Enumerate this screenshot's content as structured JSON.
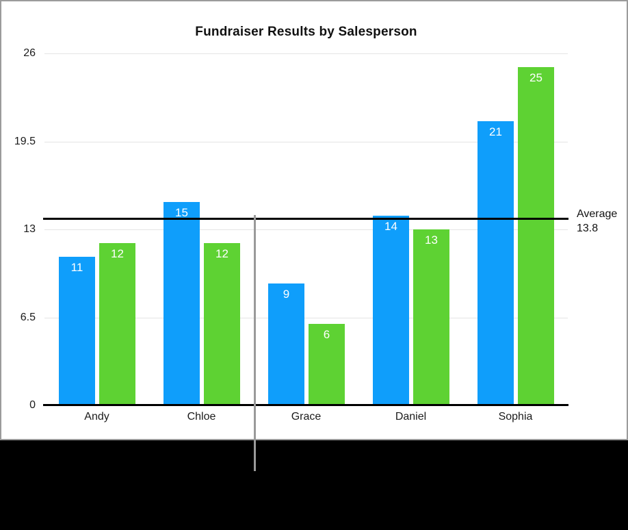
{
  "chart_data": {
    "type": "bar",
    "title": "Fundraiser Results by Salesperson",
    "categories": [
      "Andy",
      "Chloe",
      "Grace",
      "Daniel",
      "Sophia"
    ],
    "series": [
      {
        "name": "blue",
        "color": "#0f9efb",
        "values": [
          11,
          15,
          9,
          14,
          21
        ]
      },
      {
        "name": "green",
        "color": "#5ed233",
        "values": [
          12,
          12,
          6,
          13,
          25
        ]
      }
    ],
    "bar_value_labels": [
      [
        "11",
        "15",
        "9",
        "14",
        "21"
      ],
      [
        "12",
        "12",
        "6",
        "13",
        "25"
      ]
    ],
    "y_ticks": [
      "0",
      "6.5",
      "13",
      "19.5",
      "26"
    ],
    "y_tick_values": [
      0,
      6.5,
      13,
      19.5,
      26
    ],
    "ylim": [
      0,
      26
    ],
    "grid": true,
    "legend": "none",
    "xlabel": "",
    "ylabel": "",
    "average_line": {
      "label": "Average",
      "value": 13.8,
      "value_label": "13.8",
      "color": "#000000"
    }
  },
  "colors": {
    "series_blue": "#0f9efb",
    "series_green": "#5ed233",
    "gridline": "#e4e4e4",
    "axis_line": "#000000",
    "figure_border": "#9b9b9b",
    "divider_line": "#9a9a9a",
    "letterbox": "#000000",
    "text": "#1a1a1a",
    "bar_label_text": "#ffffff"
  }
}
